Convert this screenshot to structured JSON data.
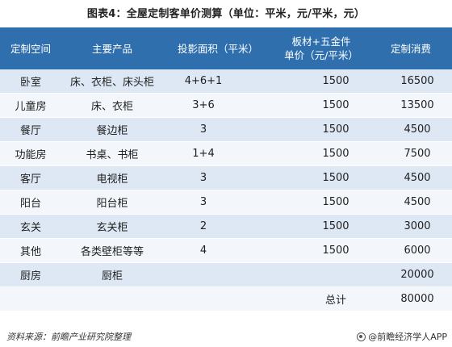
{
  "title": "图表4：全屋定制客单价测算（单位：平米，元/平米，元）",
  "table": {
    "headers": [
      "定制空间",
      "主要产品",
      "投影面积（平米）",
      "板材+五金件",
      "单价（元/平米）",
      "定制消费"
    ],
    "rows": [
      {
        "space": "卧室",
        "product": "床、衣柜、床头柜",
        "area": "4+6+1",
        "price": "1500",
        "cost": "16500"
      },
      {
        "space": "儿童房",
        "product": "床、衣柜",
        "area": "3+6",
        "price": "1500",
        "cost": "13500"
      },
      {
        "space": "餐厅",
        "product": "餐边柜",
        "area": "3",
        "price": "1500",
        "cost": "4500"
      },
      {
        "space": "功能房",
        "product": "书桌、书柜",
        "area": "1+4",
        "price": "1500",
        "cost": "7500"
      },
      {
        "space": "客厅",
        "product": "电视柜",
        "area": "3",
        "price": "1500",
        "cost": "4500"
      },
      {
        "space": "阳台",
        "product": "阳台柜",
        "area": "3",
        "price": "1500",
        "cost": "4500"
      },
      {
        "space": "玄关",
        "product": "玄关柜",
        "area": "2",
        "price": "1500",
        "cost": "3000"
      },
      {
        "space": "其他",
        "product": "各类壁柜等等",
        "area": "4",
        "price": "1500",
        "cost": "6000"
      },
      {
        "space": "厨房",
        "product": "厨柜",
        "area": "",
        "price": "",
        "cost": "20000"
      }
    ],
    "total_label": "总计",
    "total_value": "80000"
  },
  "footer": {
    "source": "资料来源：前瞻产业研究院整理",
    "brand": "@前瞻经济学人APP"
  },
  "colors": {
    "header_bg": "#2f6fae",
    "row_odd": "#dde8f4",
    "row_even": "#f3f7fb"
  }
}
